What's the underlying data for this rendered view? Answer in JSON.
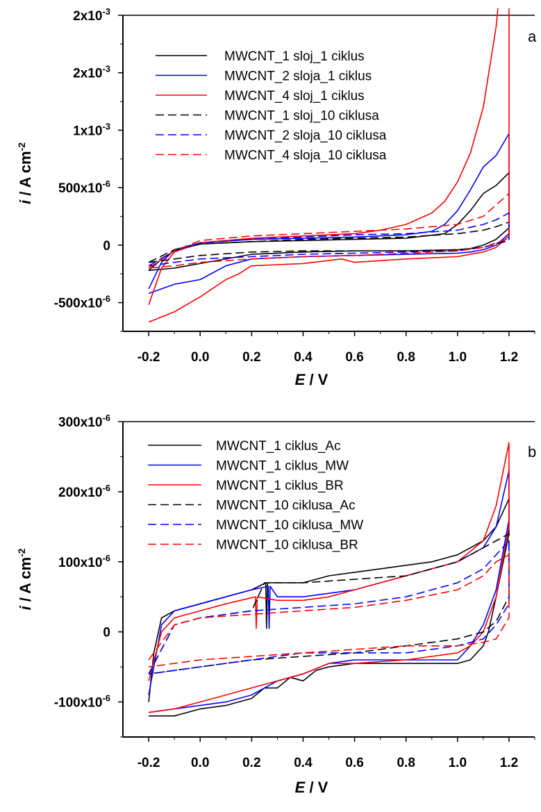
{
  "chart_data": [
    {
      "type": "line",
      "panel_letter": "a",
      "xlabel": {
        "symbol": "E",
        "unit": " / V"
      },
      "ylabel": {
        "symbol": "i",
        "unit": " / A cm",
        "exp": "-2"
      },
      "xlim": [
        -0.3,
        1.3
      ],
      "ylim": [
        -0.00075,
        0.002
      ],
      "x_ticks": [
        {
          "value": -0.2,
          "label": "-0.2"
        },
        {
          "value": 0.0,
          "label": "0.0"
        },
        {
          "value": 0.2,
          "label": "0.2"
        },
        {
          "value": 0.4,
          "label": "0.4"
        },
        {
          "value": 0.6,
          "label": "0.6"
        },
        {
          "value": 0.8,
          "label": "0.8"
        },
        {
          "value": 1.0,
          "label": "1.0"
        },
        {
          "value": 1.2,
          "label": "1.2"
        }
      ],
      "y_ticks": [
        {
          "value": -0.0005,
          "mant": "-500x10",
          "exp": "-6"
        },
        {
          "value": 0,
          "mant": "0",
          "exp": ""
        },
        {
          "value": 0.0005,
          "mant": "500x10",
          "exp": "-6"
        },
        {
          "value": 0.001,
          "mant": "1x10",
          "exp": "-3"
        },
        {
          "value": 0.0015,
          "mant": "2x10",
          "exp": "-3"
        },
        {
          "value": 0.002,
          "mant": "2x10",
          "exp": "-3"
        }
      ],
      "legend_position": "top-left",
      "series": [
        {
          "name": "MWCNT_1 sloj_1 ciklus",
          "color": "#000000",
          "dashed": false,
          "x": [
            -0.2,
            -0.15,
            -0.1,
            0,
            0.2,
            0.4,
            0.6,
            0.8,
            0.95,
            1.0,
            1.05,
            1.1,
            1.15,
            1.2,
            1.2,
            1.15,
            1.1,
            1.05,
            1.0,
            0.8,
            0.6,
            0.4,
            0.2,
            0,
            -0.1,
            -0.2
          ],
          "y": [
            -0.00022,
            -0.00012,
            -5e-05,
            1e-05,
            3e-05,
            4e-05,
            5e-05,
            6e-05,
            0.0001,
            0.00018,
            0.0003,
            0.00045,
            0.00052,
            0.00063,
            0.00015,
            5e-05,
            0.0,
            -3e-05,
            -4e-05,
            -5e-05,
            -5e-05,
            -6e-05,
            -8e-05,
            -0.00016,
            -0.0002,
            -0.00022
          ]
        },
        {
          "name": "MWCNT_2 sloja_1 ciklus",
          "color": "#0000ff",
          "dashed": false,
          "x": [
            -0.2,
            -0.15,
            -0.1,
            0,
            0.2,
            0.4,
            0.6,
            0.8,
            0.9,
            0.95,
            1.0,
            1.05,
            1.1,
            1.15,
            1.2,
            1.2,
            1.15,
            1.1,
            1.05,
            1.0,
            0.8,
            0.6,
            0.4,
            0.2,
            0.1,
            0,
            -0.1,
            -0.2
          ],
          "y": [
            -0.00038,
            -0.00015,
            -4e-05,
            2e-05,
            5e-05,
            6e-05,
            7e-05,
            9e-05,
            0.00012,
            0.00018,
            0.0003,
            0.00048,
            0.00068,
            0.00078,
            0.00097,
            0.0001,
            0.0,
            -4e-05,
            -6e-05,
            -7e-05,
            -8e-05,
            -9e-05,
            -0.0001,
            -0.00012,
            -0.00018,
            -0.0003,
            -0.00034,
            -0.00042
          ]
        },
        {
          "name": "MWCNT_4 sloj_1 ciklus",
          "color": "#ff0000",
          "dashed": false,
          "x": [
            -0.2,
            -0.15,
            -0.1,
            0,
            0.2,
            0.4,
            0.6,
            0.7,
            0.8,
            0.9,
            0.95,
            1.0,
            1.05,
            1.1,
            1.15,
            1.18,
            1.2,
            1.2,
            1.15,
            1.1,
            1.05,
            1.0,
            0.8,
            0.6,
            0.55,
            0.4,
            0.2,
            0.15,
            0.1,
            0,
            -0.1,
            -0.2
          ],
          "y": [
            -0.00052,
            -0.0002,
            -6e-05,
            2e-05,
            6e-05,
            8e-05,
            0.0001,
            0.00013,
            0.00018,
            0.00028,
            0.00038,
            0.00055,
            0.0008,
            0.0012,
            0.0019,
            0.0026,
            0.00295,
            8e-05,
            -2e-05,
            -6e-05,
            -8e-05,
            -0.0001,
            -0.00012,
            -0.00015,
            -0.00012,
            -0.00016,
            -0.00018,
            -0.00025,
            -0.0003,
            -0.00045,
            -0.00058,
            -0.00067
          ]
        },
        {
          "name": "MWCNT_1 sloj_10 ciklusa",
          "color": "#000000",
          "dashed": true,
          "x": [
            -0.2,
            -0.1,
            0,
            0.2,
            0.4,
            0.6,
            0.8,
            1.0,
            1.1,
            1.15,
            1.2,
            1.2,
            1.1,
            1.0,
            0.8,
            0.6,
            0.4,
            0.2,
            0,
            -0.1,
            -0.2
          ],
          "y": [
            -0.00015,
            -4e-05,
            1e-05,
            3e-05,
            5e-05,
            6e-05,
            7e-05,
            0.0001,
            0.00013,
            0.00016,
            0.0002,
            4e-05,
            -2e-05,
            -4e-05,
            -5e-05,
            -5e-05,
            -5e-05,
            -6e-05,
            -9e-05,
            -0.00012,
            -0.00015
          ]
        },
        {
          "name": "MWCNT_2 sloja_10 ciklusa",
          "color": "#0000ff",
          "dashed": true,
          "x": [
            -0.2,
            -0.1,
            0,
            0.2,
            0.4,
            0.6,
            0.8,
            1.0,
            1.1,
            1.15,
            1.2,
            1.2,
            1.1,
            1.0,
            0.8,
            0.6,
            0.4,
            0.2,
            0,
            -0.1,
            -0.2
          ],
          "y": [
            -0.00018,
            -5e-05,
            2e-05,
            5e-05,
            7e-05,
            9e-05,
            0.0001,
            0.00013,
            0.00018,
            0.00022,
            0.00028,
            5e-05,
            -2e-05,
            -5e-05,
            -6e-05,
            -7e-05,
            -8e-05,
            -0.0001,
            -0.00012,
            -0.00015,
            -0.00018
          ]
        },
        {
          "name": "MWCNT_4 sloja_10 ciklusa",
          "color": "#ff0000",
          "dashed": true,
          "x": [
            -0.2,
            -0.1,
            0,
            0.2,
            0.4,
            0.6,
            0.8,
            1.0,
            1.1,
            1.15,
            1.2,
            1.2,
            1.1,
            1.0,
            0.8,
            0.6,
            0.4,
            0.2,
            0,
            -0.1,
            -0.2
          ],
          "y": [
            -0.0002,
            -5e-05,
            4e-05,
            8e-05,
            0.0001,
            0.00012,
            0.00014,
            0.00018,
            0.00025,
            0.00035,
            0.00045,
            6e-05,
            -2e-05,
            -5e-05,
            -7e-05,
            -9e-05,
            -0.0001,
            -0.00012,
            -0.00015,
            -0.00018,
            -0.0002
          ]
        }
      ]
    },
    {
      "type": "line",
      "panel_letter": "b",
      "xlabel": {
        "symbol": "E",
        "unit": " / V"
      },
      "ylabel": {
        "symbol": "i",
        "unit": " / A cm",
        "exp": "-2"
      },
      "xlim": [
        -0.3,
        1.3
      ],
      "ylim": [
        -0.00015,
        0.0003
      ],
      "x_ticks": [
        {
          "value": -0.2,
          "label": "-0.2"
        },
        {
          "value": 0.0,
          "label": "0.0"
        },
        {
          "value": 0.2,
          "label": "0.2"
        },
        {
          "value": 0.4,
          "label": "0.4"
        },
        {
          "value": 0.6,
          "label": "0.6"
        },
        {
          "value": 0.8,
          "label": "0.8"
        },
        {
          "value": 1.0,
          "label": "1.0"
        },
        {
          "value": 1.2,
          "label": "1.2"
        }
      ],
      "y_ticks": [
        {
          "value": -0.0001,
          "mant": "-100x10",
          "exp": "-6"
        },
        {
          "value": 0,
          "mant": "0",
          "exp": ""
        },
        {
          "value": 0.0001,
          "mant": "100x10",
          "exp": "-6"
        },
        {
          "value": 0.0002,
          "mant": "200x10",
          "exp": "-6"
        },
        {
          "value": 0.0003,
          "mant": "300x10",
          "exp": "-6"
        }
      ],
      "legend_position": "top-left",
      "series": [
        {
          "name": "MWCNT_1 ciklus_Ac",
          "color": "#000000",
          "dashed": false,
          "x": [
            -0.2,
            -0.18,
            -0.15,
            -0.1,
            0,
            0.1,
            0.2,
            0.255,
            0.258,
            0.262,
            0.3,
            0.4,
            0.5,
            0.6,
            0.7,
            0.8,
            0.9,
            1.0,
            1.1,
            1.15,
            1.2,
            1.2,
            1.15,
            1.12,
            1.1,
            1.05,
            1.0,
            0.9,
            0.8,
            0.7,
            0.6,
            0.5,
            0.45,
            0.4,
            0.35,
            0.3,
            0.25,
            0.2,
            0.1,
            0,
            -0.1,
            -0.2
          ],
          "y": [
            -0.0001,
            -3e-05,
            2e-05,
            3e-05,
            4e-05,
            5e-05,
            6e-05,
            7e-05,
            5e-06,
            7e-05,
            7e-05,
            7e-05,
            8e-05,
            8.5e-05,
            9e-05,
            9.5e-05,
            0.0001,
            0.00011,
            0.00013,
            0.00015,
            0.00019,
            0.00014,
            5e-05,
            0.0,
            -2e-05,
            -4e-05,
            -4.5e-05,
            -4.5e-05,
            -4.5e-05,
            -4.5e-05,
            -4.5e-05,
            -5e-05,
            -5.5e-05,
            -7e-05,
            -6.5e-05,
            -8e-05,
            -8e-05,
            -9.5e-05,
            -0.000105,
            -0.00011,
            -0.00012,
            -0.00012
          ]
        },
        {
          "name": "MWCNT_1 ciklus_MW",
          "color": "#0000ff",
          "dashed": false,
          "x": [
            -0.2,
            -0.15,
            -0.1,
            0,
            0.1,
            0.2,
            0.265,
            0.268,
            0.272,
            0.3,
            0.4,
            0.5,
            0.6,
            0.7,
            0.8,
            0.9,
            1.0,
            1.1,
            1.15,
            1.2,
            1.2,
            1.15,
            1.1,
            1.05,
            1.0,
            0.9,
            0.8,
            0.6,
            0.5,
            0.4,
            0.3,
            0.25,
            0.2,
            0.1,
            0,
            -0.1,
            -0.2
          ],
          "y": [
            -9e-05,
            1e-05,
            3e-05,
            4e-05,
            5e-05,
            6e-05,
            6.5e-05,
            5e-06,
            6.5e-05,
            5e-05,
            5e-05,
            5.5e-05,
            6e-05,
            7e-05,
            8e-05,
            9e-05,
            0.0001,
            0.00012,
            0.00015,
            0.00023,
            0.00016,
            6e-05,
            1e-05,
            -2e-05,
            -4e-05,
            -4e-05,
            -4e-05,
            -4e-05,
            -4.5e-05,
            -6e-05,
            -7e-05,
            -8e-05,
            -9e-05,
            -0.0001,
            -0.000105,
            -0.00011,
            -0.000115
          ]
        },
        {
          "name": "MWCNT_1 ciklus_BR",
          "color": "#ff0000",
          "dashed": false,
          "x": [
            -0.2,
            -0.15,
            -0.1,
            0,
            0.1,
            0.215,
            0.218,
            0.222,
            0.3,
            0.4,
            0.5,
            0.6,
            0.7,
            0.8,
            0.9,
            1.0,
            1.1,
            1.15,
            1.2,
            1.2,
            1.15,
            1.1,
            1.05,
            1.0,
            0.8,
            0.6,
            0.5,
            0.4,
            0.3,
            0.2,
            0.1,
            0,
            -0.1,
            -0.2
          ],
          "y": [
            -7e-05,
            0.0,
            2e-05,
            3e-05,
            4e-05,
            5e-05,
            5e-06,
            5e-05,
            4.5e-05,
            4.5e-05,
            5e-05,
            6e-05,
            7e-05,
            8e-05,
            9e-05,
            0.0001,
            0.00013,
            0.00018,
            0.00027,
            0.00015,
            5e-05,
            0.0,
            -2e-05,
            -3e-05,
            -4e-05,
            -4.5e-05,
            -4.5e-05,
            -6e-05,
            -7e-05,
            -8e-05,
            -9e-05,
            -0.0001,
            -0.00011,
            -0.000115
          ]
        },
        {
          "name": "MWCNT_10 ciklusa_Ac",
          "color": "#000000",
          "dashed": true,
          "x": [
            -0.2,
            -0.1,
            0,
            0.2,
            0.25,
            0.4,
            0.6,
            0.8,
            1.0,
            1.1,
            1.15,
            1.2,
            1.2,
            1.15,
            1.1,
            1.0,
            0.8,
            0.6,
            0.4,
            0.2,
            0,
            -0.1,
            -0.2
          ],
          "y": [
            -6e-05,
            1e-05,
            2e-05,
            3e-05,
            7e-05,
            7e-05,
            7.5e-05,
            8e-05,
            0.0001,
            0.00012,
            0.00013,
            0.00014,
            5e-05,
            1.5e-05,
            0.0,
            -1e-05,
            -2e-05,
            -3e-05,
            -3.5e-05,
            -4e-05,
            -5e-05,
            -5.5e-05,
            -6e-05
          ]
        },
        {
          "name": "MWCNT_10 ciklusa_MW",
          "color": "#0000ff",
          "dashed": true,
          "x": [
            -0.2,
            -0.1,
            0,
            0.2,
            0.4,
            0.6,
            0.8,
            1.0,
            1.1,
            1.15,
            1.2,
            1.2,
            1.15,
            1.1,
            1.0,
            0.8,
            0.6,
            0.4,
            0.2,
            0,
            -0.1,
            -0.2
          ],
          "y": [
            -6e-05,
            1e-05,
            2e-05,
            3e-05,
            3.5e-05,
            4e-05,
            5e-05,
            7e-05,
            9e-05,
            0.00011,
            0.00013,
            4e-05,
            1e-05,
            -1e-05,
            -2e-05,
            -3e-05,
            -3e-05,
            -3e-05,
            -4e-05,
            -5e-05,
            -5.5e-05,
            -6e-05
          ]
        },
        {
          "name": "MWCNT_10 ciklusa_BR",
          "color": "#ff0000",
          "dashed": true,
          "x": [
            -0.2,
            -0.1,
            0,
            0.2,
            0.4,
            0.6,
            0.8,
            1.0,
            1.1,
            1.15,
            1.2,
            1.2,
            1.15,
            1.1,
            1.0,
            0.8,
            0.6,
            0.4,
            0.2,
            0,
            -0.1,
            -0.2
          ],
          "y": [
            -4e-05,
            1e-05,
            2e-05,
            2.5e-05,
            3e-05,
            3.5e-05,
            4.5e-05,
            6e-05,
            8e-05,
            0.0001,
            0.00011,
            2e-05,
            -1e-05,
            -1.5e-05,
            -2e-05,
            -2e-05,
            -2.5e-05,
            -3e-05,
            -3.5e-05,
            -4e-05,
            -4.5e-05,
            -5e-05
          ]
        }
      ]
    }
  ]
}
